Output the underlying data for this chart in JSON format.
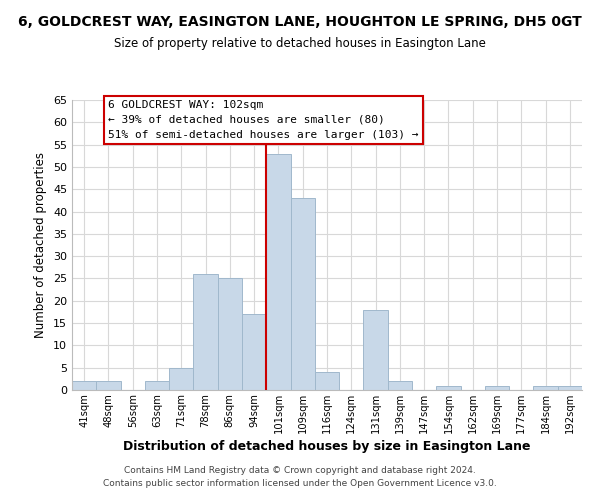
{
  "title": "6, GOLDCREST WAY, EASINGTON LANE, HOUGHTON LE SPRING, DH5 0GT",
  "subtitle": "Size of property relative to detached houses in Easington Lane",
  "xlabel": "Distribution of detached houses by size in Easington Lane",
  "ylabel": "Number of detached properties",
  "bar_labels": [
    "41sqm",
    "48sqm",
    "56sqm",
    "63sqm",
    "71sqm",
    "78sqm",
    "86sqm",
    "94sqm",
    "101sqm",
    "109sqm",
    "116sqm",
    "124sqm",
    "131sqm",
    "139sqm",
    "147sqm",
    "154sqm",
    "162sqm",
    "169sqm",
    "177sqm",
    "184sqm",
    "192sqm"
  ],
  "bar_values": [
    2,
    2,
    0,
    2,
    5,
    26,
    25,
    17,
    53,
    43,
    4,
    0,
    18,
    2,
    0,
    1,
    0,
    1,
    0,
    1,
    1
  ],
  "bar_color": "#c8d8e8",
  "bar_edge_color": "#a0b8cc",
  "vline_index": 8,
  "vline_color": "#cc0000",
  "ylim": [
    0,
    65
  ],
  "yticks": [
    0,
    5,
    10,
    15,
    20,
    25,
    30,
    35,
    40,
    45,
    50,
    55,
    60,
    65
  ],
  "annotation_title": "6 GOLDCREST WAY: 102sqm",
  "annotation_line1": "← 39% of detached houses are smaller (80)",
  "annotation_line2": "51% of semi-detached houses are larger (103) →",
  "annotation_box_color": "#ffffff",
  "annotation_box_edge": "#cc0000",
  "footer_line1": "Contains HM Land Registry data © Crown copyright and database right 2024.",
  "footer_line2": "Contains public sector information licensed under the Open Government Licence v3.0.",
  "background_color": "#ffffff",
  "grid_color": "#d8d8d8"
}
